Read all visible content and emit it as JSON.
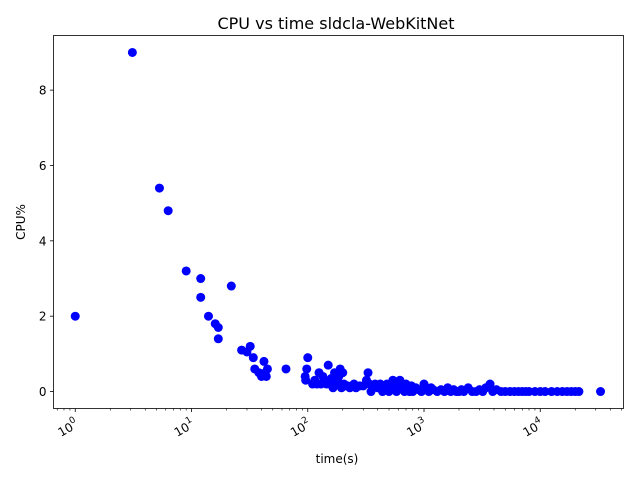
{
  "chart_data": {
    "type": "scatter",
    "title": "CPU vs time sldcla-WebKitNet",
    "xlabel": "time(s)",
    "ylabel": "CPU%",
    "x_scale": "log",
    "xlim": [
      0.65,
      52000
    ],
    "ylim": [
      -0.45,
      9.45
    ],
    "x_ticks": [
      {
        "value": 1,
        "base": "10",
        "exp": "0"
      },
      {
        "value": 10,
        "base": "10",
        "exp": "1"
      },
      {
        "value": 100,
        "base": "10",
        "exp": "2"
      },
      {
        "value": 1000,
        "base": "10",
        "exp": "3"
      },
      {
        "value": 10000,
        "base": "10",
        "exp": "4"
      }
    ],
    "y_ticks": [
      0,
      2,
      4,
      6,
      8
    ],
    "grid": false,
    "marker_color": "#0000ff",
    "points": [
      [
        1,
        2.0
      ],
      [
        3.1,
        9.0
      ],
      [
        5.3,
        5.4
      ],
      [
        6.3,
        4.8
      ],
      [
        9,
        3.2
      ],
      [
        12,
        3.0
      ],
      [
        12,
        2.5
      ],
      [
        14,
        2.0
      ],
      [
        16,
        1.8
      ],
      [
        17,
        1.7
      ],
      [
        17,
        1.4
      ],
      [
        22,
        2.8
      ],
      [
        27,
        1.1
      ],
      [
        30,
        1.05
      ],
      [
        32,
        1.2
      ],
      [
        34,
        0.9
      ],
      [
        35,
        0.6
      ],
      [
        38,
        0.5
      ],
      [
        40,
        0.4
      ],
      [
        42,
        0.8
      ],
      [
        43,
        0.5
      ],
      [
        44,
        0.4
      ],
      [
        45,
        0.6
      ],
      [
        65,
        0.6
      ],
      [
        95,
        0.4
      ],
      [
        96,
        0.3
      ],
      [
        98,
        0.6
      ],
      [
        100,
        0.9
      ],
      [
        110,
        0.2
      ],
      [
        115,
        0.3
      ],
      [
        120,
        0.2
      ],
      [
        125,
        0.5
      ],
      [
        130,
        0.2
      ],
      [
        135,
        0.4
      ],
      [
        140,
        0.3
      ],
      [
        145,
        0.2
      ],
      [
        150,
        0.7
      ],
      [
        155,
        0.2
      ],
      [
        160,
        0.35
      ],
      [
        165,
        0.1
      ],
      [
        170,
        0.5
      ],
      [
        175,
        0.2
      ],
      [
        180,
        0.3
      ],
      [
        185,
        0.4
      ],
      [
        190,
        0.6
      ],
      [
        195,
        0.1
      ],
      [
        200,
        0.5
      ],
      [
        205,
        0.2
      ],
      [
        210,
        0.15
      ],
      [
        220,
        0.15
      ],
      [
        230,
        0.1
      ],
      [
        240,
        0.15
      ],
      [
        250,
        0.2
      ],
      [
        260,
        0.1
      ],
      [
        280,
        0.15
      ],
      [
        300,
        0.15
      ],
      [
        320,
        0.3
      ],
      [
        330,
        0.5
      ],
      [
        340,
        0.2
      ],
      [
        350,
        0.0
      ],
      [
        360,
        0.1
      ],
      [
        380,
        0.2
      ],
      [
        400,
        0.1
      ],
      [
        420,
        0.2
      ],
      [
        440,
        0.0
      ],
      [
        460,
        0.1
      ],
      [
        480,
        0.2
      ],
      [
        500,
        0.0
      ],
      [
        520,
        0.1
      ],
      [
        540,
        0.3
      ],
      [
        560,
        0.2
      ],
      [
        580,
        0.0
      ],
      [
        600,
        0.1
      ],
      [
        620,
        0.3
      ],
      [
        650,
        0.2
      ],
      [
        680,
        0.0
      ],
      [
        700,
        0.2
      ],
      [
        720,
        0.1
      ],
      [
        750,
        0.0
      ],
      [
        780,
        0.15
      ],
      [
        800,
        0.0
      ],
      [
        850,
        0.1
      ],
      [
        900,
        0.05
      ],
      [
        950,
        0.0
      ],
      [
        1000,
        0.2
      ],
      [
        1050,
        0.1
      ],
      [
        1100,
        0.0
      ],
      [
        1150,
        0.1
      ],
      [
        1200,
        0.05
      ],
      [
        1300,
        0.0
      ],
      [
        1400,
        0.05
      ],
      [
        1500,
        0.0
      ],
      [
        1600,
        0.1
      ],
      [
        1700,
        0.0
      ],
      [
        1800,
        0.05
      ],
      [
        1900,
        0.0
      ],
      [
        2000,
        0.0
      ],
      [
        2100,
        0.05
      ],
      [
        2200,
        0.0
      ],
      [
        2400,
        0.1
      ],
      [
        2600,
        0.0
      ],
      [
        2800,
        0.0
      ],
      [
        3000,
        0.05
      ],
      [
        3200,
        0.0
      ],
      [
        3400,
        0.1
      ],
      [
        3700,
        0.2
      ],
      [
        3900,
        0.0
      ],
      [
        4200,
        0.05
      ],
      [
        4600,
        0.0
      ],
      [
        5000,
        0.0
      ],
      [
        5500,
        0.0
      ],
      [
        6000,
        0.0
      ],
      [
        6500,
        0.0
      ],
      [
        7000,
        0.0
      ],
      [
        7500,
        0.0
      ],
      [
        8000,
        0.0
      ],
      [
        9000,
        0.0
      ],
      [
        10000,
        0.0
      ],
      [
        11000,
        0.0
      ],
      [
        12500,
        0.0
      ],
      [
        14000,
        0.0
      ],
      [
        15500,
        0.0
      ],
      [
        17000,
        0.0
      ],
      [
        18500,
        0.0
      ],
      [
        20000,
        0.0
      ],
      [
        21500,
        0.0
      ],
      [
        33000,
        0.0
      ]
    ]
  }
}
